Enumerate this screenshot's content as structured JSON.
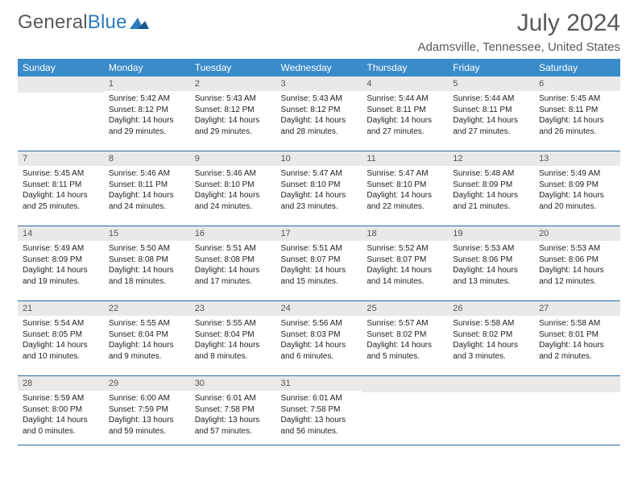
{
  "logo": {
    "text1": "General",
    "text2": "Blue"
  },
  "title": "July 2024",
  "location": "Adamsville, Tennessee, United States",
  "colors": {
    "header_bg": "#3a8bc9",
    "header_text": "#ffffff",
    "daynum_bg": "#e9e9e9",
    "rule": "#2b6aa3",
    "body_text": "#222222",
    "title_text": "#595959"
  },
  "weekdays": [
    "Sunday",
    "Monday",
    "Tuesday",
    "Wednesday",
    "Thursday",
    "Friday",
    "Saturday"
  ],
  "weeks": [
    [
      {
        "n": "",
        "lines": [
          "",
          "",
          "",
          ""
        ]
      },
      {
        "n": "1",
        "lines": [
          "Sunrise: 5:42 AM",
          "Sunset: 8:12 PM",
          "Daylight: 14 hours",
          "and 29 minutes."
        ]
      },
      {
        "n": "2",
        "lines": [
          "Sunrise: 5:43 AM",
          "Sunset: 8:12 PM",
          "Daylight: 14 hours",
          "and 29 minutes."
        ]
      },
      {
        "n": "3",
        "lines": [
          "Sunrise: 5:43 AM",
          "Sunset: 8:12 PM",
          "Daylight: 14 hours",
          "and 28 minutes."
        ]
      },
      {
        "n": "4",
        "lines": [
          "Sunrise: 5:44 AM",
          "Sunset: 8:11 PM",
          "Daylight: 14 hours",
          "and 27 minutes."
        ]
      },
      {
        "n": "5",
        "lines": [
          "Sunrise: 5:44 AM",
          "Sunset: 8:11 PM",
          "Daylight: 14 hours",
          "and 27 minutes."
        ]
      },
      {
        "n": "6",
        "lines": [
          "Sunrise: 5:45 AM",
          "Sunset: 8:11 PM",
          "Daylight: 14 hours",
          "and 26 minutes."
        ]
      }
    ],
    [
      {
        "n": "7",
        "lines": [
          "Sunrise: 5:45 AM",
          "Sunset: 8:11 PM",
          "Daylight: 14 hours",
          "and 25 minutes."
        ]
      },
      {
        "n": "8",
        "lines": [
          "Sunrise: 5:46 AM",
          "Sunset: 8:11 PM",
          "Daylight: 14 hours",
          "and 24 minutes."
        ]
      },
      {
        "n": "9",
        "lines": [
          "Sunrise: 5:46 AM",
          "Sunset: 8:10 PM",
          "Daylight: 14 hours",
          "and 24 minutes."
        ]
      },
      {
        "n": "10",
        "lines": [
          "Sunrise: 5:47 AM",
          "Sunset: 8:10 PM",
          "Daylight: 14 hours",
          "and 23 minutes."
        ]
      },
      {
        "n": "11",
        "lines": [
          "Sunrise: 5:47 AM",
          "Sunset: 8:10 PM",
          "Daylight: 14 hours",
          "and 22 minutes."
        ]
      },
      {
        "n": "12",
        "lines": [
          "Sunrise: 5:48 AM",
          "Sunset: 8:09 PM",
          "Daylight: 14 hours",
          "and 21 minutes."
        ]
      },
      {
        "n": "13",
        "lines": [
          "Sunrise: 5:49 AM",
          "Sunset: 8:09 PM",
          "Daylight: 14 hours",
          "and 20 minutes."
        ]
      }
    ],
    [
      {
        "n": "14",
        "lines": [
          "Sunrise: 5:49 AM",
          "Sunset: 8:09 PM",
          "Daylight: 14 hours",
          "and 19 minutes."
        ]
      },
      {
        "n": "15",
        "lines": [
          "Sunrise: 5:50 AM",
          "Sunset: 8:08 PM",
          "Daylight: 14 hours",
          "and 18 minutes."
        ]
      },
      {
        "n": "16",
        "lines": [
          "Sunrise: 5:51 AM",
          "Sunset: 8:08 PM",
          "Daylight: 14 hours",
          "and 17 minutes."
        ]
      },
      {
        "n": "17",
        "lines": [
          "Sunrise: 5:51 AM",
          "Sunset: 8:07 PM",
          "Daylight: 14 hours",
          "and 15 minutes."
        ]
      },
      {
        "n": "18",
        "lines": [
          "Sunrise: 5:52 AM",
          "Sunset: 8:07 PM",
          "Daylight: 14 hours",
          "and 14 minutes."
        ]
      },
      {
        "n": "19",
        "lines": [
          "Sunrise: 5:53 AM",
          "Sunset: 8:06 PM",
          "Daylight: 14 hours",
          "and 13 minutes."
        ]
      },
      {
        "n": "20",
        "lines": [
          "Sunrise: 5:53 AM",
          "Sunset: 8:06 PM",
          "Daylight: 14 hours",
          "and 12 minutes."
        ]
      }
    ],
    [
      {
        "n": "21",
        "lines": [
          "Sunrise: 5:54 AM",
          "Sunset: 8:05 PM",
          "Daylight: 14 hours",
          "and 10 minutes."
        ]
      },
      {
        "n": "22",
        "lines": [
          "Sunrise: 5:55 AM",
          "Sunset: 8:04 PM",
          "Daylight: 14 hours",
          "and 9 minutes."
        ]
      },
      {
        "n": "23",
        "lines": [
          "Sunrise: 5:55 AM",
          "Sunset: 8:04 PM",
          "Daylight: 14 hours",
          "and 8 minutes."
        ]
      },
      {
        "n": "24",
        "lines": [
          "Sunrise: 5:56 AM",
          "Sunset: 8:03 PM",
          "Daylight: 14 hours",
          "and 6 minutes."
        ]
      },
      {
        "n": "25",
        "lines": [
          "Sunrise: 5:57 AM",
          "Sunset: 8:02 PM",
          "Daylight: 14 hours",
          "and 5 minutes."
        ]
      },
      {
        "n": "26",
        "lines": [
          "Sunrise: 5:58 AM",
          "Sunset: 8:02 PM",
          "Daylight: 14 hours",
          "and 3 minutes."
        ]
      },
      {
        "n": "27",
        "lines": [
          "Sunrise: 5:58 AM",
          "Sunset: 8:01 PM",
          "Daylight: 14 hours",
          "and 2 minutes."
        ]
      }
    ],
    [
      {
        "n": "28",
        "lines": [
          "Sunrise: 5:59 AM",
          "Sunset: 8:00 PM",
          "Daylight: 14 hours",
          "and 0 minutes."
        ]
      },
      {
        "n": "29",
        "lines": [
          "Sunrise: 6:00 AM",
          "Sunset: 7:59 PM",
          "Daylight: 13 hours",
          "and 59 minutes."
        ]
      },
      {
        "n": "30",
        "lines": [
          "Sunrise: 6:01 AM",
          "Sunset: 7:58 PM",
          "Daylight: 13 hours",
          "and 57 minutes."
        ]
      },
      {
        "n": "31",
        "lines": [
          "Sunrise: 6:01 AM",
          "Sunset: 7:58 PM",
          "Daylight: 13 hours",
          "and 56 minutes."
        ]
      },
      {
        "n": "",
        "lines": [
          "",
          "",
          "",
          ""
        ]
      },
      {
        "n": "",
        "lines": [
          "",
          "",
          "",
          ""
        ]
      },
      {
        "n": "",
        "lines": [
          "",
          "",
          "",
          ""
        ]
      }
    ]
  ]
}
